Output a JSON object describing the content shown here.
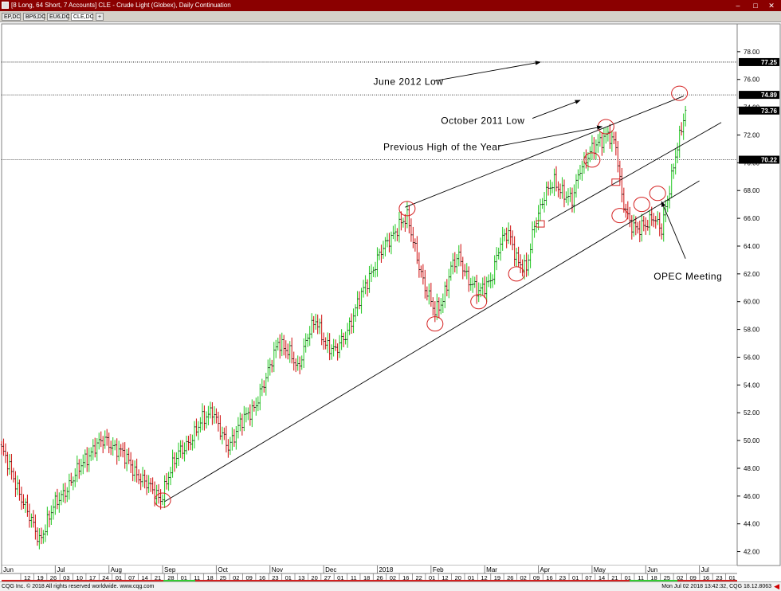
{
  "window": {
    "title": "[8 Long, 64 Short, 7 Accounts]  CLE - Crude Light (Globex), Daily Continuation",
    "minimize": "–",
    "maximize": "□",
    "close": "✕",
    "tabs": [
      "EP,DC",
      "BP6,DC",
      "EU6,DC",
      "CLE,DC",
      "+"
    ],
    "active_tab": 3
  },
  "status": {
    "left": "CQG Inc. © 2018 All rights reserved worldwide. www.cqg.com",
    "right": "Mon Jul 02 2018 13:42:32, CQG 18.12.8063"
  },
  "chart_data": {
    "type": "candlestick",
    "title": "CLE - Crude Light (Globex), Daily Continuation",
    "ylim": [
      41.0,
      80.0
    ],
    "ticks_y": [
      42.0,
      44.0,
      46.0,
      48.0,
      50.0,
      52.0,
      54.0,
      56.0,
      58.0,
      60.0,
      62.0,
      64.0,
      66.0,
      68.0,
      70.0,
      72.0,
      74.0,
      76.0,
      78.0
    ],
    "price_labels": [
      {
        "text": "77.25",
        "value": 77.25
      },
      {
        "text": "74.89",
        "value": 74.89
      },
      {
        "text": "73.76",
        "value": 73.76
      },
      {
        "text": "70.22",
        "value": 70.22
      }
    ],
    "horizontal_levels": [
      77.25,
      74.89,
      70.22
    ],
    "months": [
      {
        "label": "Jun",
        "day": 0
      },
      {
        "label": "Jul",
        "day": 27
      },
      {
        "label": "Aug",
        "day": 54
      },
      {
        "label": "Sep",
        "day": 81
      },
      {
        "label": "Oct",
        "day": 108
      },
      {
        "label": "Nov",
        "day": 135
      },
      {
        "label": "Dec",
        "day": 162
      },
      {
        "label": "2018",
        "day": 189
      },
      {
        "label": "Feb",
        "day": 216
      },
      {
        "label": "Mar",
        "day": 243
      },
      {
        "label": "Apr",
        "day": 270
      },
      {
        "label": "May",
        "day": 297
      },
      {
        "label": "Jun",
        "day": 324
      },
      {
        "label": "Jul",
        "day": 351
      }
    ],
    "date_ticks": [
      "12",
      "19",
      "26",
      "03",
      "10",
      "17",
      "24",
      "01",
      "07",
      "14",
      "21",
      "28",
      "01",
      "11",
      "18",
      "25",
      "02",
      "09",
      "16",
      "23",
      "01",
      "13",
      "20",
      "27",
      "01",
      "11",
      "18",
      "26",
      "02",
      "16",
      "22",
      "01",
      "12",
      "20",
      "01",
      "12",
      "19",
      "26",
      "02",
      "09",
      "16",
      "23",
      "01",
      "07",
      "14",
      "21",
      "01",
      "11",
      "18",
      "25",
      "02",
      "09",
      "16",
      "23",
      "01"
    ],
    "anchors": [
      {
        "day": 0,
        "price": 49.4
      },
      {
        "day": 8,
        "price": 46.6
      },
      {
        "day": 14,
        "price": 44.5
      },
      {
        "day": 19,
        "price": 42.8
      },
      {
        "day": 26,
        "price": 45.2
      },
      {
        "day": 33,
        "price": 46.6
      },
      {
        "day": 40,
        "price": 48.2
      },
      {
        "day": 47,
        "price": 49.6
      },
      {
        "day": 52,
        "price": 50.0
      },
      {
        "day": 60,
        "price": 49.2
      },
      {
        "day": 68,
        "price": 47.6
      },
      {
        "day": 76,
        "price": 46.4
      },
      {
        "day": 80,
        "price": 45.8
      },
      {
        "day": 84,
        "price": 47.4
      },
      {
        "day": 89,
        "price": 49.2
      },
      {
        "day": 96,
        "price": 50.1
      },
      {
        "day": 101,
        "price": 51.6
      },
      {
        "day": 106,
        "price": 52.2
      },
      {
        "day": 110,
        "price": 50.6
      },
      {
        "day": 114,
        "price": 49.6
      },
      {
        "day": 120,
        "price": 51.2
      },
      {
        "day": 127,
        "price": 52.4
      },
      {
        "day": 133,
        "price": 54.4
      },
      {
        "day": 139,
        "price": 57.2
      },
      {
        "day": 145,
        "price": 56.2
      },
      {
        "day": 149,
        "price": 55.2
      },
      {
        "day": 154,
        "price": 57.6
      },
      {
        "day": 158,
        "price": 58.6
      },
      {
        "day": 163,
        "price": 57.0
      },
      {
        "day": 168,
        "price": 56.4
      },
      {
        "day": 173,
        "price": 57.6
      },
      {
        "day": 179,
        "price": 59.8
      },
      {
        "day": 185,
        "price": 61.8
      },
      {
        "day": 190,
        "price": 63.4
      },
      {
        "day": 196,
        "price": 64.6
      },
      {
        "day": 200,
        "price": 65.6
      },
      {
        "day": 204,
        "price": 66.0
      },
      {
        "day": 208,
        "price": 63.8
      },
      {
        "day": 213,
        "price": 61.0
      },
      {
        "day": 218,
        "price": 59.2
      },
      {
        "day": 222,
        "price": 60.2
      },
      {
        "day": 226,
        "price": 62.4
      },
      {
        "day": 230,
        "price": 63.2
      },
      {
        "day": 235,
        "price": 61.6
      },
      {
        "day": 240,
        "price": 60.6
      },
      {
        "day": 246,
        "price": 61.6
      },
      {
        "day": 251,
        "price": 64.2
      },
      {
        "day": 255,
        "price": 65.0
      },
      {
        "day": 260,
        "price": 62.8
      },
      {
        "day": 264,
        "price": 62.2
      },
      {
        "day": 268,
        "price": 65.6
      },
      {
        "day": 273,
        "price": 67.6
      },
      {
        "day": 278,
        "price": 68.6
      },
      {
        "day": 283,
        "price": 67.8
      },
      {
        "day": 287,
        "price": 67.2
      },
      {
        "day": 291,
        "price": 69.6
      },
      {
        "day": 296,
        "price": 70.8
      },
      {
        "day": 301,
        "price": 71.4
      },
      {
        "day": 305,
        "price": 72.2
      },
      {
        "day": 309,
        "price": 71.2
      },
      {
        "day": 312,
        "price": 67.4
      },
      {
        "day": 316,
        "price": 65.8
      },
      {
        "day": 320,
        "price": 65.2
      },
      {
        "day": 324,
        "price": 65.4
      },
      {
        "day": 328,
        "price": 66.2
      },
      {
        "day": 332,
        "price": 65.2
      },
      {
        "day": 336,
        "price": 68.0
      },
      {
        "day": 339,
        "price": 70.6
      },
      {
        "day": 342,
        "price": 72.6
      },
      {
        "day": 344,
        "price": 73.8
      }
    ],
    "trendlines": [
      {
        "from": {
          "day": 82,
          "price": 45.6
        },
        "to": {
          "day": 351,
          "price": 68.7
        }
      },
      {
        "from": {
          "day": 203,
          "price": 66.8
        },
        "to": {
          "day": 343,
          "price": 74.8
        }
      },
      {
        "from": {
          "day": 275,
          "price": 65.8
        },
        "to": {
          "day": 362,
          "price": 72.9
        }
      }
    ],
    "circles": [
      {
        "day": 81,
        "price": 45.7
      },
      {
        "day": 204,
        "price": 66.7
      },
      {
        "day": 218,
        "price": 58.4
      },
      {
        "day": 240,
        "price": 60.0
      },
      {
        "day": 259,
        "price": 62.0
      },
      {
        "day": 297,
        "price": 70.2
      },
      {
        "day": 304,
        "price": 72.6
      },
      {
        "day": 311,
        "price": 66.2
      },
      {
        "day": 322,
        "price": 67.0
      },
      {
        "day": 330,
        "price": 67.8
      },
      {
        "day": 341,
        "price": 75.0
      }
    ],
    "boxes": [
      {
        "day": 271,
        "price": 65.6
      },
      {
        "day": 309,
        "price": 68.6
      }
    ],
    "annotations": [
      {
        "text": "June 2012 Low",
        "text_day": 187,
        "text_price": 75.6,
        "arrow_from": {
          "day": 218,
          "price": 75.9
        },
        "arrow_to": {
          "day": 271,
          "price": 77.25
        }
      },
      {
        "text": "October 2011 Low",
        "text_day": 221,
        "text_price": 72.8,
        "arrow_from": {
          "day": 267,
          "price": 73.2
        },
        "arrow_to": {
          "day": 291,
          "price": 74.5
        }
      },
      {
        "text": "Previous High of the Year",
        "text_day": 192,
        "text_price": 70.9,
        "arrow_from": {
          "day": 250,
          "price": 71.2
        },
        "arrow_to": {
          "day": 302,
          "price": 72.6
        }
      },
      {
        "text": "OPEC Meeting",
        "text_day": 328,
        "text_price": 61.6,
        "arrow_from": {
          "day": 344,
          "price": 63.1
        },
        "arrow_to": {
          "day": 332,
          "price": 67.2
        }
      }
    ]
  }
}
